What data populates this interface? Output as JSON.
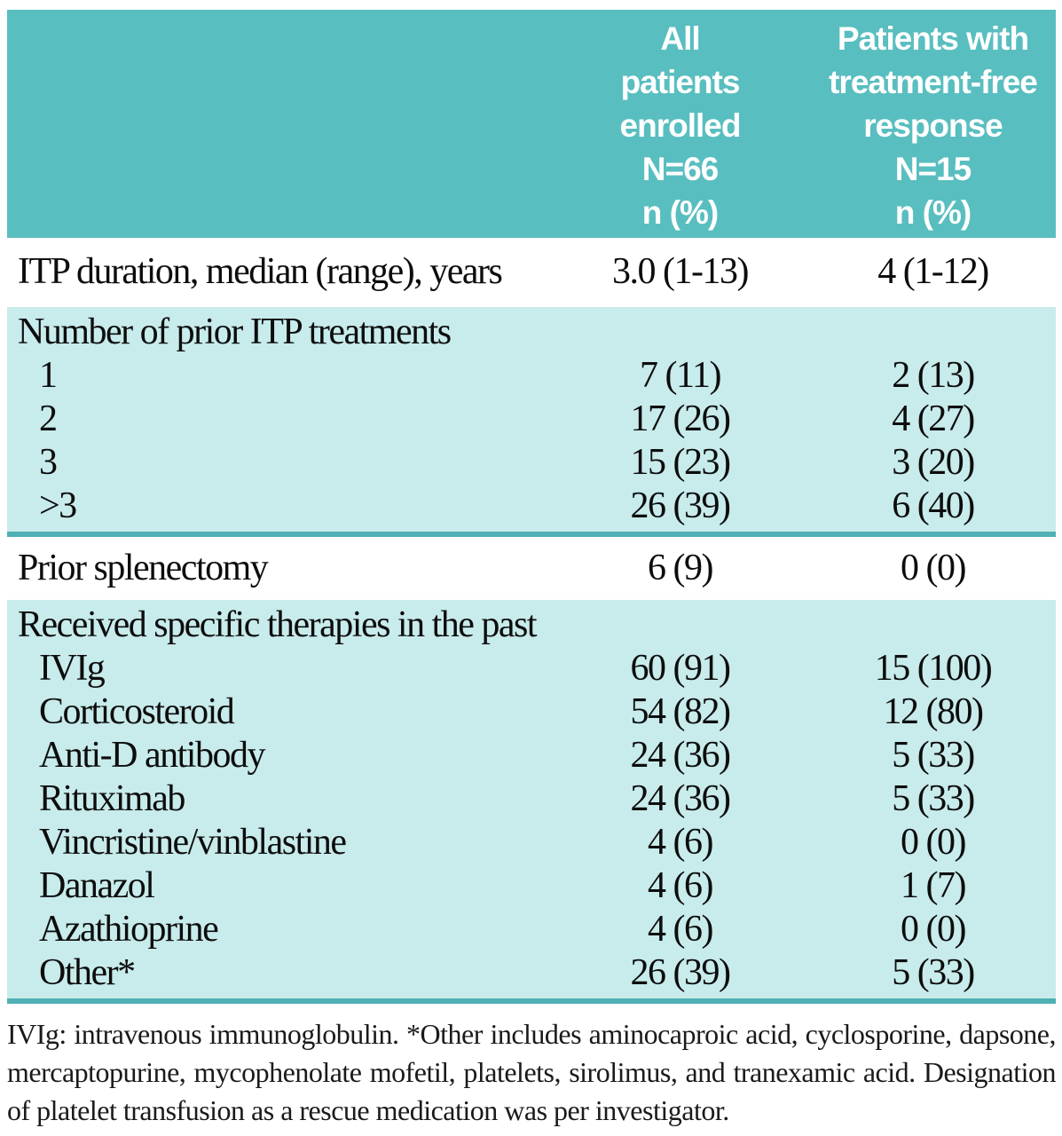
{
  "colors": {
    "header_bg": "#59bec0",
    "section_bg": "#c8ebeb",
    "divider": "#4fb0b5",
    "header_text": "#ffffff",
    "body_text": "#0d0d0d"
  },
  "table": {
    "header": {
      "all": "All\npatients\nenrolled\nN=66\nn (%)",
      "tfr": "Patients with\ntreatment-free\nresponse\nN=15\nn (%)"
    },
    "itp_duration": {
      "label": "ITP duration, median (range), years",
      "all": "3.0 (1-13)",
      "tfr": "4 (1-12)"
    },
    "prior_treatments": {
      "title": "Number of prior ITP treatments",
      "rows": [
        {
          "label": "1",
          "all": "7 (11)",
          "tfr": "2 (13)"
        },
        {
          "label": "2",
          "all": "17 (26)",
          "tfr": "4 (27)"
        },
        {
          "label": "3",
          "all": "15 (23)",
          "tfr": "3 (20)"
        },
        {
          "label": ">3",
          "all": "26 (39)",
          "tfr": "6 (40)"
        }
      ]
    },
    "prior_splenectomy": {
      "label": "Prior splenectomy",
      "all": "6 (9)",
      "tfr": "0 (0)"
    },
    "prior_therapies": {
      "title": "Received specific therapies in the past",
      "rows": [
        {
          "label": "IVIg",
          "all": "60 (91)",
          "tfr": "15 (100)"
        },
        {
          "label": "Corticosteroid",
          "all": "54 (82)",
          "tfr": "12 (80)"
        },
        {
          "label": "Anti-D antibody",
          "all": "24 (36)",
          "tfr": "5 (33)"
        },
        {
          "label": "Rituximab",
          "all": "24 (36)",
          "tfr": "5 (33)"
        },
        {
          "label": "Vincristine/vinblastine",
          "all": "4 (6)",
          "tfr": "0 (0)"
        },
        {
          "label": "Danazol",
          "all": "4 (6)",
          "tfr": "1 (7)"
        },
        {
          "label": "Azathioprine",
          "all": "4 (6)",
          "tfr": "0 (0)"
        },
        {
          "label": "Other*",
          "all": "26 (39)",
          "tfr": "5 (33)"
        }
      ]
    }
  },
  "footnote": "IVIg: intravenous immunoglobulin. *Other includes aminocaproic acid, cyclosporine, dapsone, mercaptopurine, mycophenolate mofetil, platelets, sirolimus, and tranexamic acid. Designation of platelet transfusion as a rescue medication was per investigator."
}
